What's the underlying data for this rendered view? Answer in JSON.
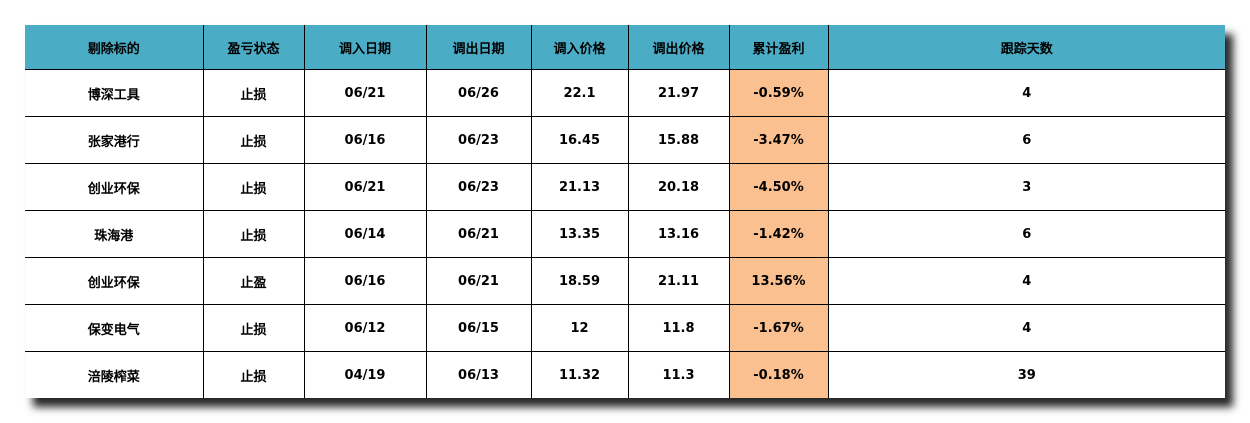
{
  "colors": {
    "header_bg": "#4bacc6",
    "profit_bg": "#fac090"
  },
  "table": {
    "headers": [
      "剔除标的",
      "盈亏状态",
      "调入日期",
      "调出日期",
      "调入价格",
      "调出价格",
      "累计盈利",
      "跟踪天数"
    ],
    "rows": [
      [
        "博深工具",
        "止损",
        "06/21",
        "06/26",
        "22.1",
        "21.97",
        "-0.59%",
        "4"
      ],
      [
        "张家港行",
        "止损",
        "06/16",
        "06/23",
        "16.45",
        "15.88",
        "-3.47%",
        "6"
      ],
      [
        "创业环保",
        "止损",
        "06/21",
        "06/23",
        "21.13",
        "20.18",
        "-4.50%",
        "3"
      ],
      [
        "珠海港",
        "止损",
        "06/14",
        "06/21",
        "13.35",
        "13.16",
        "-1.42%",
        "6"
      ],
      [
        "创业环保",
        "止盈",
        "06/16",
        "06/21",
        "18.59",
        "21.11",
        "13.56%",
        "4"
      ],
      [
        "保变电气",
        "止损",
        "06/12",
        "06/15",
        "12",
        "11.8",
        "-1.67%",
        "4"
      ],
      [
        "涪陵榨菜",
        "止损",
        "04/19",
        "06/13",
        "11.32",
        "11.3",
        "-0.18%",
        "39"
      ]
    ]
  }
}
